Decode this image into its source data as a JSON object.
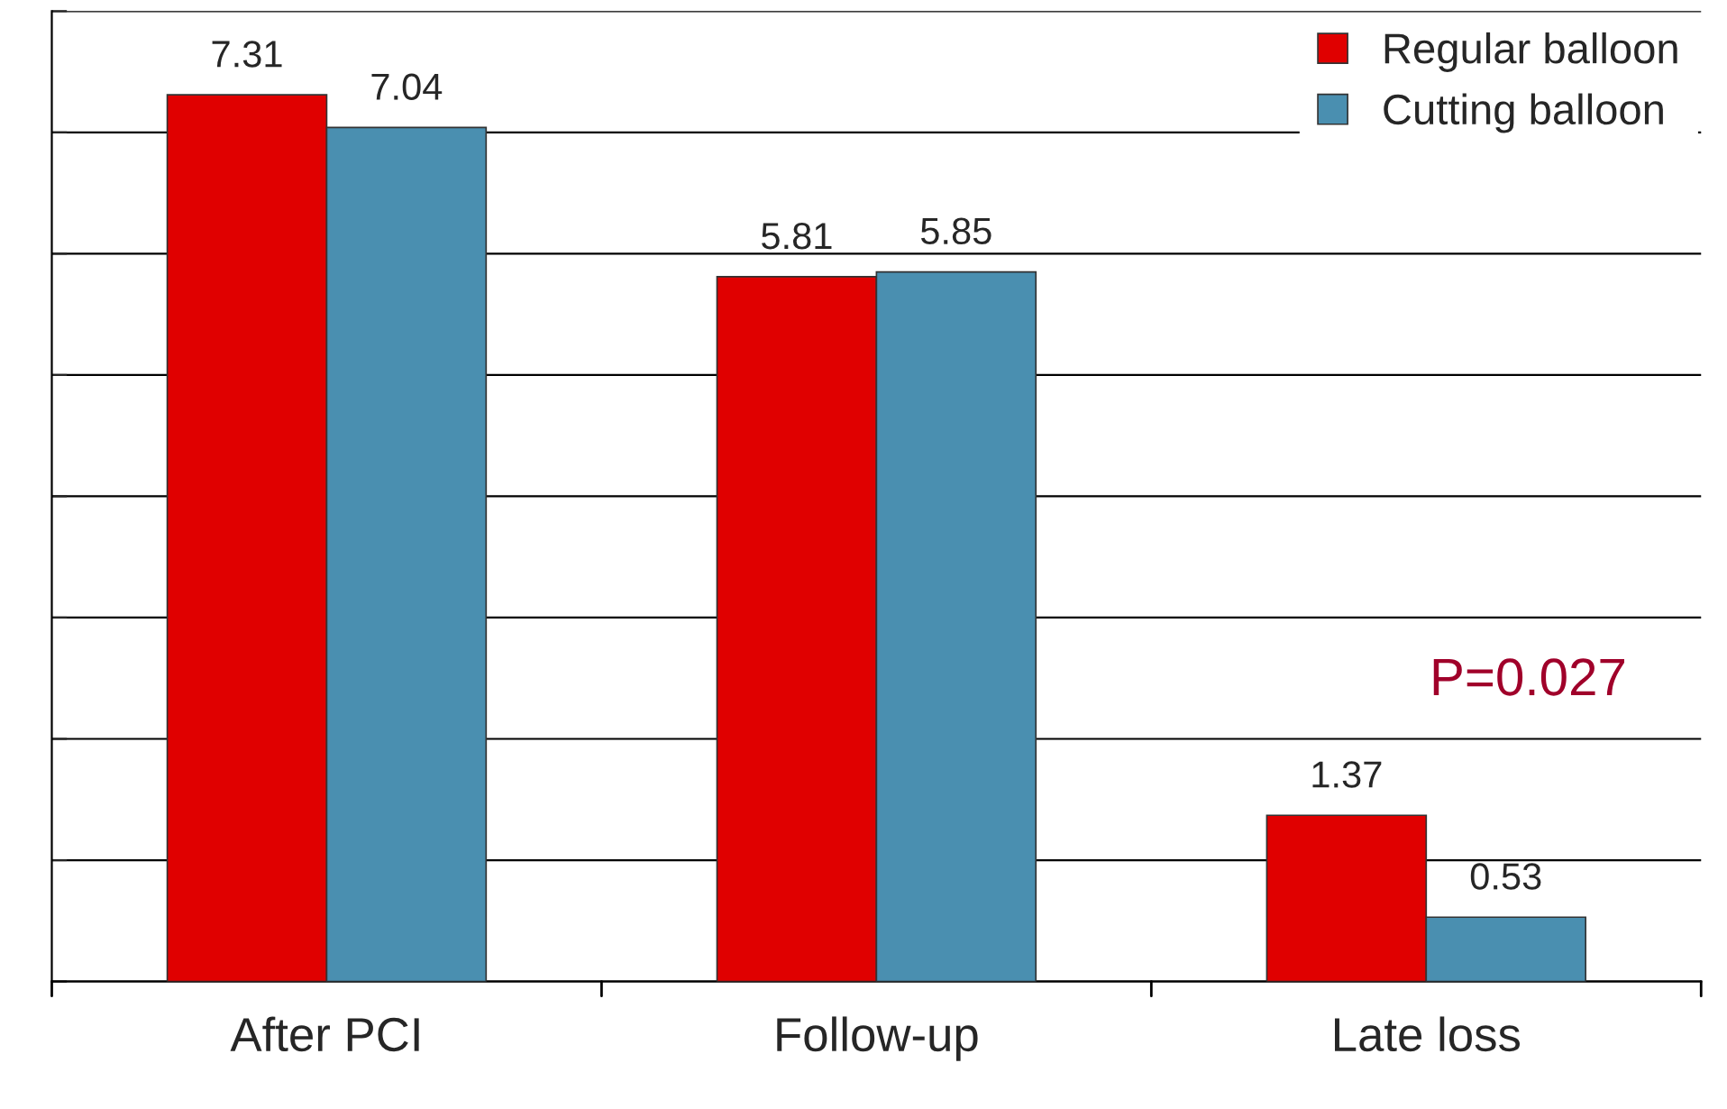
{
  "chart_data": {
    "type": "bar",
    "categories": [
      "After PCI",
      "Follow-up",
      "Late loss"
    ],
    "series": [
      {
        "name": "Regular balloon",
        "color": "#e00000",
        "values": [
          7.31,
          5.81,
          1.37
        ]
      },
      {
        "name": "Cutting balloon",
        "color": "#4a8fb0",
        "values": [
          7.04,
          5.85,
          0.53
        ]
      }
    ],
    "ylim": [
      0,
      8
    ],
    "yticks": [
      {
        "value": 0,
        "label": null
      },
      {
        "value": 1,
        "label": null
      },
      {
        "value": 2,
        "label": null
      },
      {
        "value": 3,
        "label": null
      },
      {
        "value": 4,
        "label": null
      },
      {
        "value": 5,
        "label": null
      },
      {
        "value": 6,
        "label": null
      },
      {
        "value": 7,
        "label": null
      },
      {
        "value": 8,
        "label": null
      }
    ],
    "tick_labels": "x",
    "grid": "y",
    "legend": "top right",
    "data_labels": true,
    "annotations": [
      "P=0.027"
    ]
  }
}
